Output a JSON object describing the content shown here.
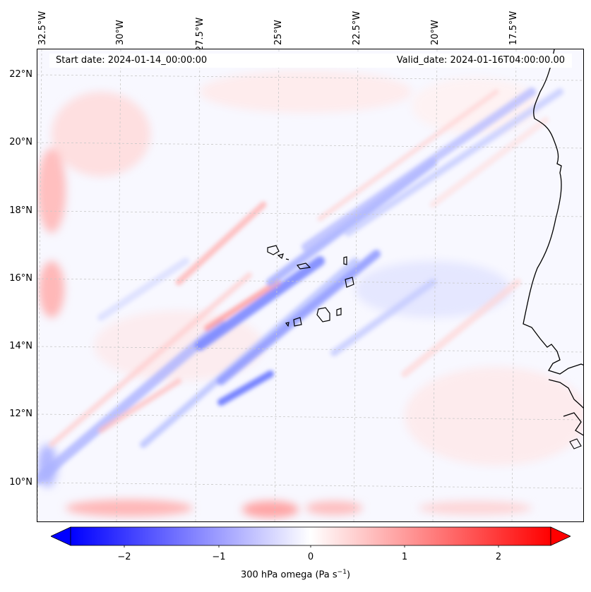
{
  "header": {
    "start_date": "Start date: 2024-01-14_00:00:00",
    "valid_date": "Valid_date: 2024-01-16T04:00:00.00"
  },
  "map": {
    "longitude_labels": [
      "32.5°W",
      "30°W",
      "27.5°W",
      "25°W",
      "22.5°W",
      "20°W",
      "17.5°W"
    ],
    "latitude_labels": [
      "22°N",
      "20°N",
      "18°N",
      "16°N",
      "14°N",
      "12°N",
      "10°N"
    ],
    "field": "300 hPa omega",
    "colormap": "bwr",
    "colors": {
      "negative": "#0000ff",
      "zero": "#ffffff",
      "positive": "#ff0000",
      "coastline": "#000000",
      "grid": "#b0b0b0"
    }
  },
  "colorbar": {
    "ticks": [
      "−2",
      "−1",
      "0",
      "1",
      "2"
    ],
    "tick_values": [
      -2,
      -1,
      0,
      1,
      2
    ],
    "range": [
      -2.6,
      2.6
    ],
    "extend": "both",
    "label": "300 hPa omega (Pa s",
    "label_sup": "−1",
    "label_end": ")"
  }
}
